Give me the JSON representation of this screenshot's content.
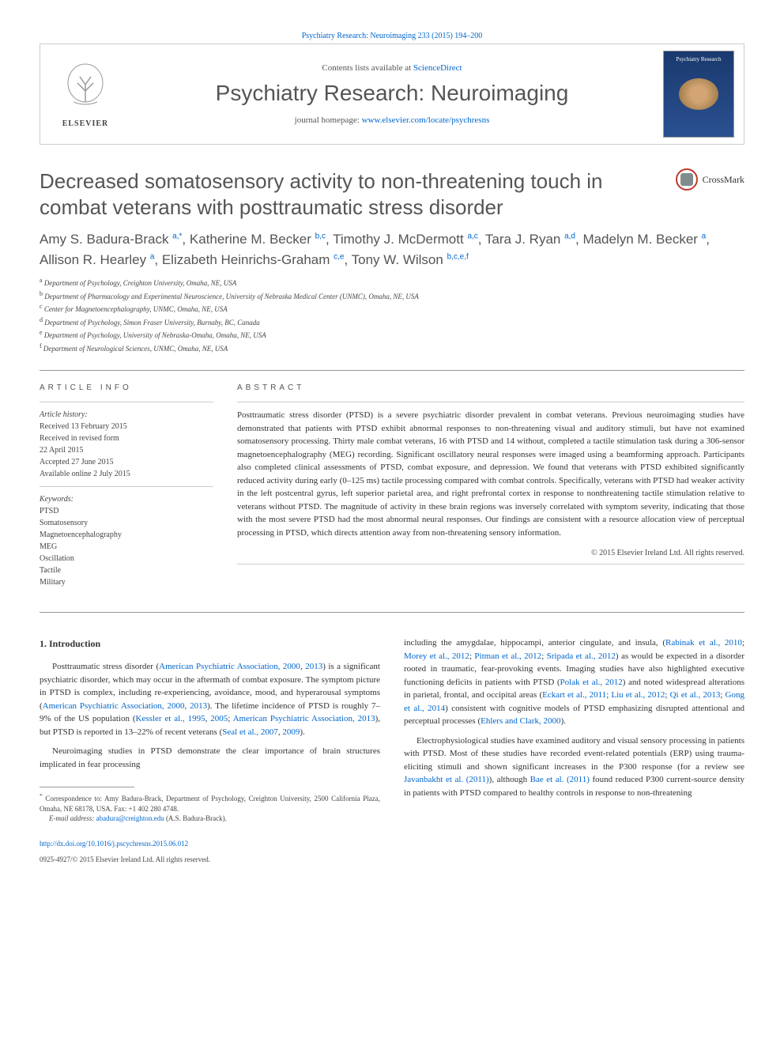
{
  "top_citation": "Psychiatry Research: Neuroimaging 233 (2015) 194–200",
  "header": {
    "contents_prefix": "Contents lists available at ",
    "contents_link": "ScienceDirect",
    "journal_title": "Psychiatry Research: Neuroimaging",
    "homepage_prefix": "journal homepage: ",
    "homepage_link": "www.elsevier.com/locate/psychresns",
    "elsevier_label": "ELSEVIER",
    "cover_title": "Psychiatry Research"
  },
  "crossmark_label": "CrossMark",
  "article": {
    "title": "Decreased somatosensory activity to non-threatening touch in combat veterans with posttraumatic stress disorder",
    "authors_html": [
      {
        "name": "Amy S. Badura-Brack",
        "sup": "a,*"
      },
      {
        "name": "Katherine M. Becker",
        "sup": "b,c"
      },
      {
        "name": "Timothy J. McDermott",
        "sup": "a,c"
      },
      {
        "name": "Tara J. Ryan",
        "sup": "a,d"
      },
      {
        "name": "Madelyn M. Becker",
        "sup": "a"
      },
      {
        "name": "Allison R. Hearley",
        "sup": "a"
      },
      {
        "name": "Elizabeth Heinrichs-Graham",
        "sup": "c,e"
      },
      {
        "name": "Tony W. Wilson",
        "sup": "b,c,e,f"
      }
    ],
    "affiliations": [
      {
        "sup": "a",
        "text": "Department of Psychology, Creighton University, Omaha, NE, USA"
      },
      {
        "sup": "b",
        "text": "Department of Pharmacology and Experimental Neuroscience, University of Nebraska Medical Center (UNMC), Omaha, NE, USA"
      },
      {
        "sup": "c",
        "text": "Center for Magnetoencephalography, UNMC, Omaha, NE, USA"
      },
      {
        "sup": "d",
        "text": "Department of Psychology, Simon Fraser University, Burnaby, BC, Canada"
      },
      {
        "sup": "e",
        "text": "Department of Psychology, University of Nebraska-Omaha, Omaha, NE, USA"
      },
      {
        "sup": "f",
        "text": "Department of Neurological Sciences, UNMC, Omaha, NE, USA"
      }
    ]
  },
  "article_info": {
    "head": "ARTICLE INFO",
    "history_label": "Article history:",
    "history": [
      "Received 13 February 2015",
      "Received in revised form",
      "22 April 2015",
      "Accepted 27 June 2015",
      "Available online 2 July 2015"
    ],
    "keywords_label": "Keywords:",
    "keywords": [
      "PTSD",
      "Somatosensory",
      "Magnetoencephalography",
      "MEG",
      "Oscillation",
      "Tactile",
      "Military"
    ]
  },
  "abstract": {
    "head": "ABSTRACT",
    "text": "Posttraumatic stress disorder (PTSD) is a severe psychiatric disorder prevalent in combat veterans. Previous neuroimaging studies have demonstrated that patients with PTSD exhibit abnormal responses to non-threatening visual and auditory stimuli, but have not examined somatosensory processing. Thirty male combat veterans, 16 with PTSD and 14 without, completed a tactile stimulation task during a 306-sensor magnetoencephalography (MEG) recording. Significant oscillatory neural responses were imaged using a beamforming approach. Participants also completed clinical assessments of PTSD, combat exposure, and depression. We found that veterans with PTSD exhibited significantly reduced activity during early (0–125 ms) tactile processing compared with combat controls. Specifically, veterans with PTSD had weaker activity in the left postcentral gyrus, left superior parietal area, and right prefrontal cortex in response to nonthreatening tactile stimulation relative to veterans without PTSD. The magnitude of activity in these brain regions was inversely correlated with symptom severity, indicating that those with the most severe PTSD had the most abnormal neural responses. Our findings are consistent with a resource allocation view of perceptual processing in PTSD, which directs attention away from non-threatening sensory information.",
    "copyright": "© 2015 Elsevier Ireland Ltd. All rights reserved."
  },
  "body": {
    "heading": "1. Introduction",
    "para1_pre": "Posttraumatic stress disorder (",
    "para1_link1": "American Psychiatric Association, 2000",
    "para1_mid1": ", ",
    "para1_link2": "2013",
    "para1_mid2": ") is a significant psychiatric disorder, which may occur in the aftermath of combat exposure. The symptom picture in PTSD is complex, including re-experiencing, avoidance, mood, and hyperarousal symptoms (",
    "para1_link3": "American Psychiatric Association, 2000",
    "para1_mid3": ", ",
    "para1_link4": "2013",
    "para1_mid4": "). The lifetime incidence of PTSD is roughly 7–9% of the US population (",
    "para1_link5": "Kessler et al., 1995",
    "para1_mid5": ", ",
    "para1_link6": "2005",
    "para1_mid6": "; ",
    "para1_link7": "American Psychiatric Association, 2013",
    "para1_mid7": "), but PTSD is reported in 13–22% of recent veterans (",
    "para1_link8": "Seal et al., 2007",
    "para1_mid8": ", ",
    "para1_link9": "2009",
    "para1_end": ").",
    "para2": "Neuroimaging studies in PTSD demonstrate the clear importance of brain structures implicated in fear processing",
    "para3_pre": "including the amygdalae, hippocampi, anterior cingulate, and insula, (",
    "para3_link1": "Rabinak et al., 2010",
    "para3_mid1": "; ",
    "para3_link2": "Morey et al., 2012",
    "para3_mid2": "; ",
    "para3_link3": "Pitman et al., 2012",
    "para3_mid3": "; ",
    "para3_link4": "Sripada et al., 2012",
    "para3_mid4": ") as would be expected in a disorder rooted in traumatic, fear-provoking events. Imaging studies have also highlighted executive functioning deficits in patients with PTSD (",
    "para3_link5": "Polak et al., 2012",
    "para3_mid5": ") and noted widespread alterations in parietal, frontal, and occipital areas (",
    "para3_link6": "Eckart et al., 2011",
    "para3_mid6": "; ",
    "para3_link7": "Liu et al., 2012",
    "para3_mid7": "; ",
    "para3_link8": "Qi et al., 2013",
    "para3_mid8": "; ",
    "para3_link9": "Gong et al., 2014",
    "para3_mid9": ") consistent with cognitive models of PTSD emphasizing disrupted attentional and perceptual processes (",
    "para3_link10": "Ehlers and Clark, 2000",
    "para3_end": ").",
    "para4_pre": "Electrophysiological studies have examined auditory and visual sensory processing in patients with PTSD. Most of these studies have recorded event-related potentials (ERP) using trauma-eliciting stimuli and shown significant increases in the P300 response (for a review see ",
    "para4_link1": "Javanbakht et al. (2011)",
    "para4_mid1": "), although ",
    "para4_link2": "Bae et al. (2011)",
    "para4_end": " found reduced P300 current-source density in patients with PTSD compared to healthy controls in response to non-threatening"
  },
  "footnote": {
    "corr_marker": "*",
    "corr_text": "Correspondence to: Amy Badura-Brack, Department of Psychology, Creighton University, 2500 California Plaza, Omaha, NE 68178, USA. Fax: +1 402 280 4748.",
    "email_label": "E-mail address: ",
    "email": "abadura@creighton.edu",
    "email_suffix": " (A.S. Badura-Brack)."
  },
  "footer": {
    "doi": "http://dx.doi.org/10.1016/j.pscychresns.2015.06.012",
    "issn_copyright": "0925-4927/© 2015 Elsevier Ireland Ltd. All rights reserved."
  }
}
